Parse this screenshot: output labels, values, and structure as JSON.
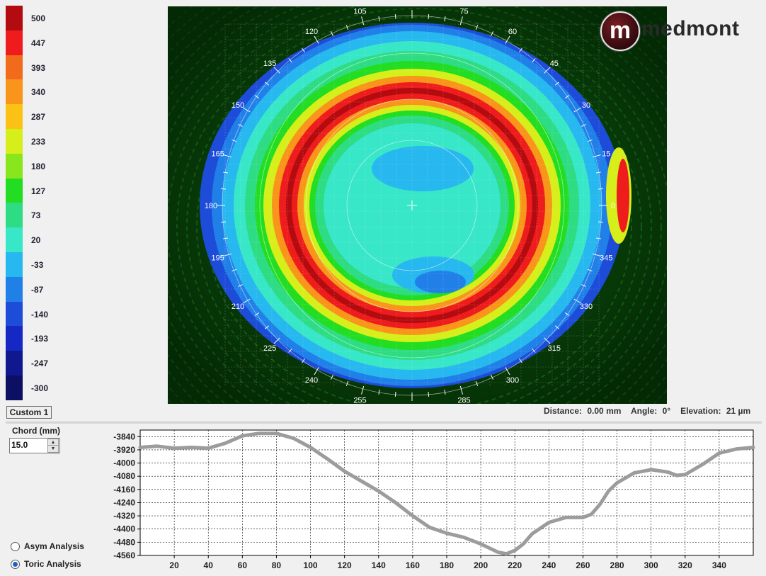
{
  "color_scale": {
    "entries": [
      {
        "label": "500",
        "color": "#b20b10"
      },
      {
        "label": "447",
        "color": "#ee1c1c"
      },
      {
        "label": "393",
        "color": "#f26a1c"
      },
      {
        "label": "340",
        "color": "#f8951a"
      },
      {
        "label": "287",
        "color": "#fbc115"
      },
      {
        "label": "233",
        "color": "#d6ee1a"
      },
      {
        "label": "180",
        "color": "#8ae61c"
      },
      {
        "label": "127",
        "color": "#22dd22"
      },
      {
        "label": "73",
        "color": "#2edc84"
      },
      {
        "label": "20",
        "color": "#38e6c8"
      },
      {
        "label": "-33",
        "color": "#26b8ee"
      },
      {
        "label": "-87",
        "color": "#2180e8"
      },
      {
        "label": "-140",
        "color": "#1c4cd8"
      },
      {
        "label": "-193",
        "color": "#1628c4"
      },
      {
        "label": "-247",
        "color": "#101890"
      },
      {
        "label": "-300",
        "color": "#0c0f62"
      }
    ]
  },
  "map": {
    "angle_labels": [
      "0",
      "15",
      "30",
      "45",
      "60",
      "75",
      "105",
      "120",
      "135",
      "150",
      "165",
      "180",
      "195",
      "210",
      "225",
      "240",
      "255",
      "285",
      "300",
      "315",
      "330",
      "345"
    ]
  },
  "logo": {
    "mark": "m",
    "text": "medmont"
  },
  "palette_button": "Custom 1",
  "status": {
    "distance_label": "Distance:",
    "distance_value": "0.00 mm",
    "angle_label": "Angle:",
    "angle_value": "0°",
    "elevation_label": "Elevation:",
    "elevation_value": "21 µm"
  },
  "chord": {
    "label": "Chord (mm)",
    "value": "15.0"
  },
  "analysis": {
    "options": [
      {
        "label": "Asym Analysis",
        "selected": false
      },
      {
        "label": "Toric Analysis",
        "selected": true
      }
    ]
  },
  "chart_data": {
    "type": "line",
    "title": "",
    "xlabel": "",
    "ylabel": "",
    "xlim": [
      0,
      360
    ],
    "ylim": [
      -4560,
      -3800
    ],
    "grid": true,
    "x_ticks": [
      "20",
      "40",
      "60",
      "80",
      "100",
      "120",
      "140",
      "160",
      "180",
      "200",
      "220",
      "240",
      "260",
      "280",
      "300",
      "320",
      "340"
    ],
    "y_ticks": [
      "-3840",
      "-3920",
      "-4000",
      "-4080",
      "-4160",
      "-4240",
      "-4320",
      "-4400",
      "-4480",
      "-4560"
    ],
    "series": [
      {
        "x": [
          0,
          10,
          20,
          30,
          40,
          50,
          60,
          70,
          80,
          90,
          100,
          110,
          120,
          130,
          140,
          150,
          160,
          170,
          180,
          190,
          200,
          205,
          210,
          215,
          220,
          225,
          230,
          240,
          250,
          260,
          265,
          270,
          275,
          280,
          290,
          300,
          310,
          315,
          320,
          330,
          340,
          350,
          360
        ],
        "values": [
          -3905,
          -3898,
          -3910,
          -3905,
          -3910,
          -3880,
          -3835,
          -3820,
          -3820,
          -3850,
          -3905,
          -3975,
          -4050,
          -4110,
          -4170,
          -4240,
          -4320,
          -4390,
          -4425,
          -4450,
          -4490,
          -4515,
          -4540,
          -4550,
          -4530,
          -4490,
          -4430,
          -4360,
          -4330,
          -4330,
          -4310,
          -4250,
          -4170,
          -4120,
          -4060,
          -4040,
          -4055,
          -4075,
          -4070,
          -4010,
          -3940,
          -3915,
          -3905
        ]
      }
    ]
  }
}
